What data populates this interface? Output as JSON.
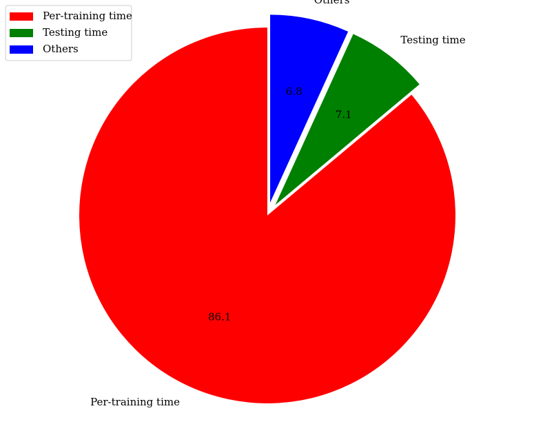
{
  "chart_data": {
    "type": "pie",
    "title": "",
    "start_angle_deg": 90,
    "direction": "counterclockwise",
    "slices": [
      {
        "label": "Per-training time",
        "value": 86.1,
        "pct_label": "86.1",
        "color": "#ff0000",
        "exploded": false
      },
      {
        "label": "Testing time",
        "value": 7.1,
        "pct_label": "7.1",
        "color": "#008000",
        "exploded": true
      },
      {
        "label": "Others",
        "value": 6.8,
        "pct_label": "6.8",
        "color": "#0000ff",
        "exploded": true
      }
    ],
    "legend": {
      "placement": "top-left",
      "entries": [
        "Per-training time",
        "Testing time",
        "Others"
      ]
    }
  }
}
